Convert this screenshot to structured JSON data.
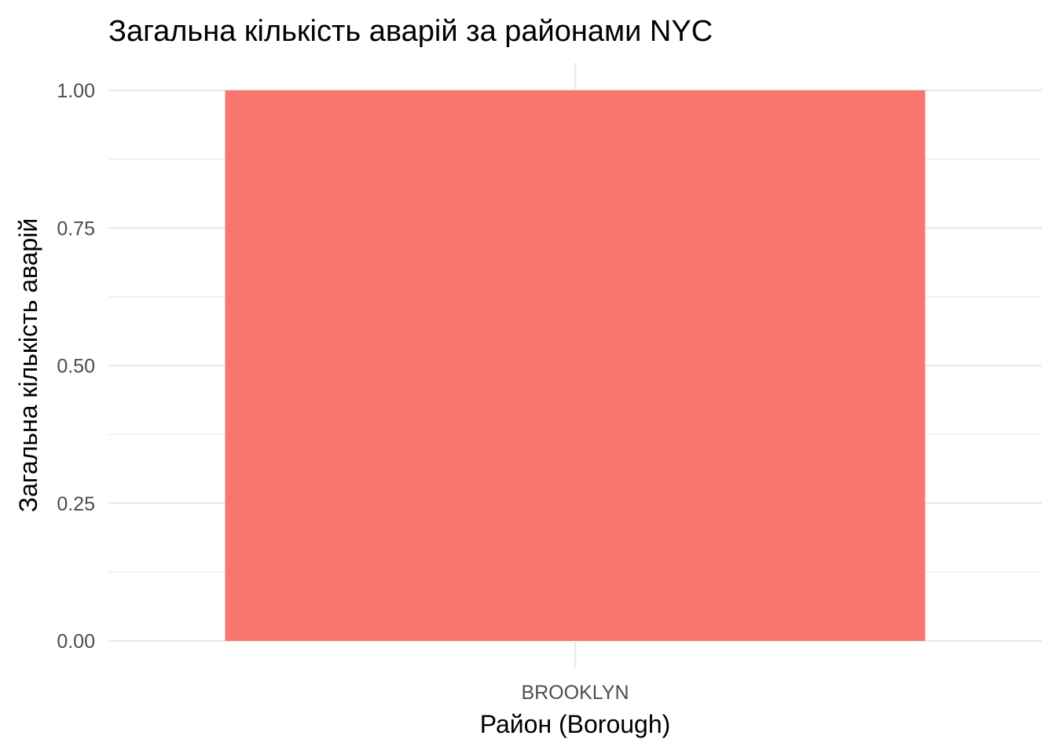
{
  "chart_data": {
    "type": "bar",
    "title": "Загальна кількість аварій за районами NYC",
    "xlabel": "Район (Borough)",
    "ylabel": "Загальна кількість аварій",
    "categories": [
      "BROOKLYN"
    ],
    "values": [
      1
    ],
    "ylim": [
      0,
      1.05
    ],
    "yticks": [
      0.0,
      0.25,
      0.5,
      0.75,
      1.0
    ],
    "ytick_labels": [
      "0.00",
      "0.25",
      "0.50",
      "0.75",
      "1.00"
    ],
    "grid": true,
    "legend": "none",
    "bar_color": "#F8766D"
  }
}
